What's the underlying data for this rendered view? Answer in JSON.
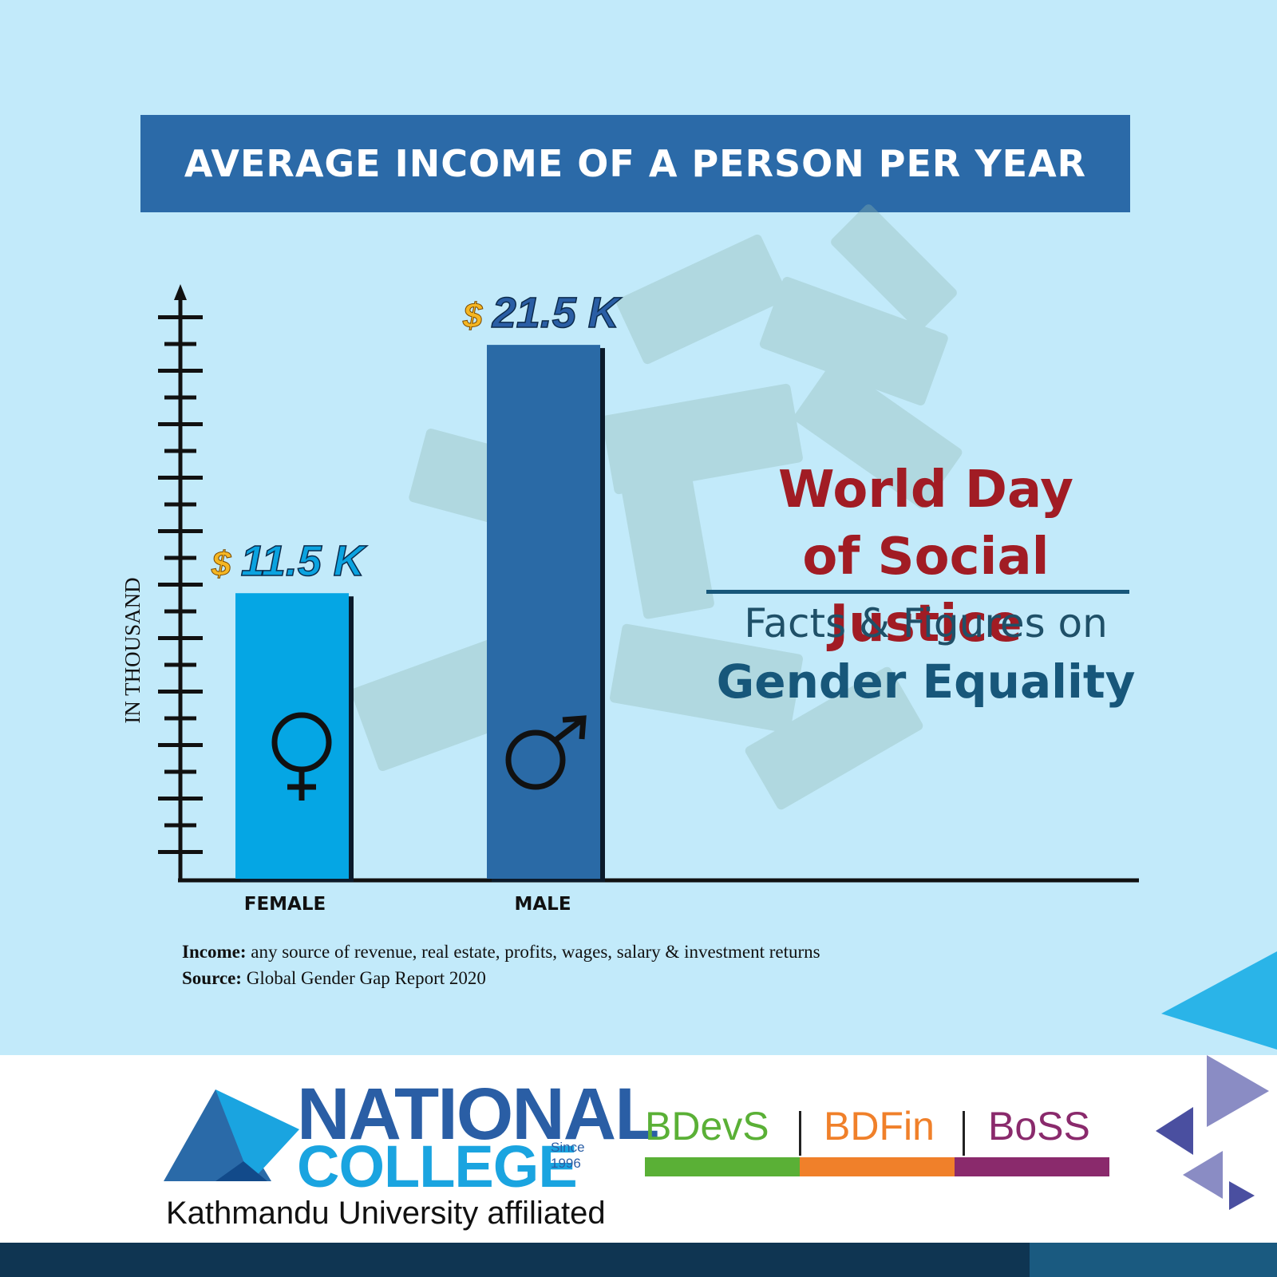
{
  "chart_data": {
    "type": "bar",
    "title": "AVERAGE INCOME  OF A PERSON PER YEAR",
    "ylabel": "IN THOUSAND",
    "categories": [
      "FEMALE",
      "MALE"
    ],
    "values": [
      11.5,
      21.5
    ],
    "value_labels": [
      "11.5 K",
      "21.5 K"
    ],
    "currency_symbol": "$",
    "ylim": [
      0,
      22.5
    ],
    "colors": [
      "#05a6e4",
      "#2a6aa6"
    ],
    "category_icons": [
      "female-symbol-icon",
      "male-symbol-icon"
    ]
  },
  "headline": {
    "line1": "World Day",
    "line2": "of Social Justice",
    "sub1": "Facts & Figures on",
    "sub2": "Gender Equality"
  },
  "notes": {
    "income_label": "Income:",
    "income_text": " any source of revenue, real estate, profits, wages, salary &  investment returns",
    "source_label": "Source:",
    "source_text": " Global Gender Gap Report 2020"
  },
  "footer": {
    "logo_line1": "NATIONAL",
    "logo_line2": "COLLEGE",
    "since_label": "Since",
    "since_year": "1996",
    "affiliation": "Kathmandu University affiliated",
    "programs": [
      "BDevS",
      "BDFin",
      "BoSS"
    ],
    "program_colors": [
      "#5ab036",
      "#f0802a",
      "#8a2a6c"
    ]
  }
}
